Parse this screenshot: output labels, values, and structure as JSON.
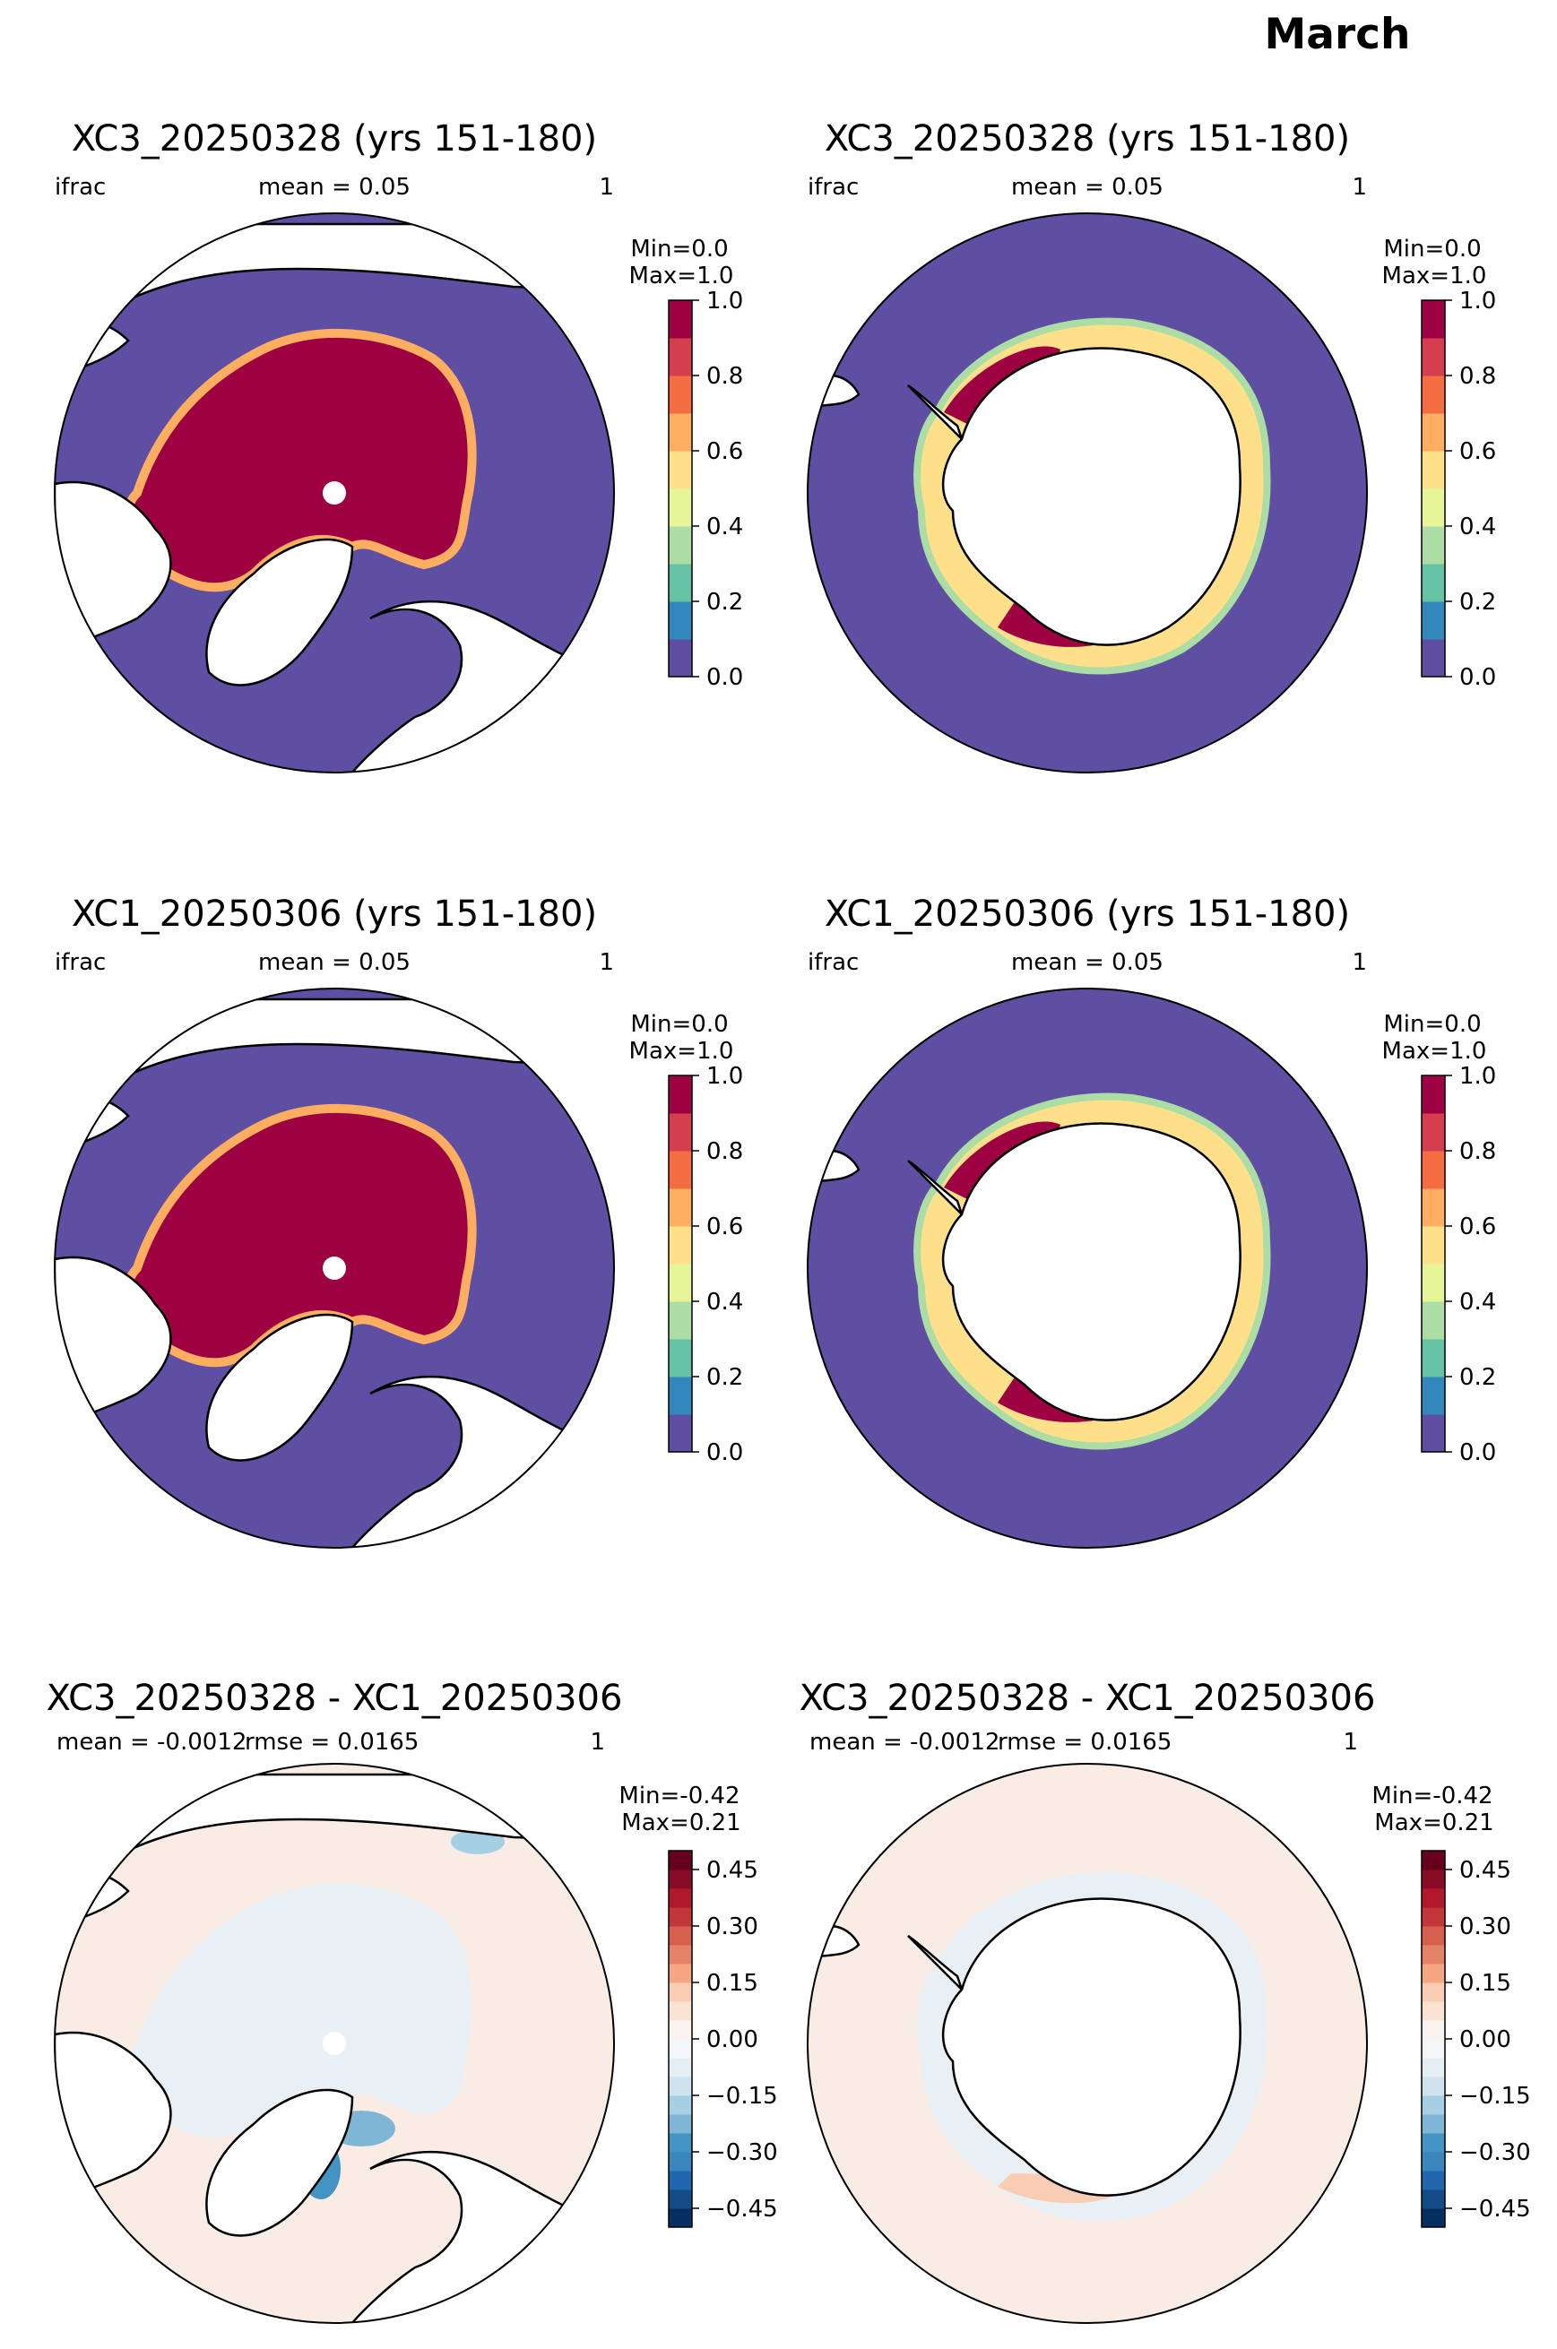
{
  "figure": {
    "suptitle": "March",
    "field": "ifrac"
  },
  "chart_data": [
    {
      "type": "heatmap",
      "map": "north-polar-stereographic",
      "title": "XC3_20250328 (yrs 151-180)",
      "label_left": "ifrac",
      "label_center": "mean = 0.05",
      "label_right": "1",
      "colormap": "Spectral_r",
      "colorbar": {
        "min_text": "Min=0.0",
        "max_text": "Max=1.0",
        "ticks": [
          "0.0",
          "0.2",
          "0.4",
          "0.6",
          "0.8",
          "1.0"
        ],
        "range": [
          0,
          1
        ],
        "levels": 10
      }
    },
    {
      "type": "heatmap",
      "map": "south-polar-stereographic",
      "title": "XC3_20250328 (yrs 151-180)",
      "label_left": "ifrac",
      "label_center": "mean = 0.05",
      "label_right": "1",
      "colormap": "Spectral_r",
      "colorbar": {
        "min_text": "Min=0.0",
        "max_text": "Max=1.0",
        "ticks": [
          "0.0",
          "0.2",
          "0.4",
          "0.6",
          "0.8",
          "1.0"
        ],
        "range": [
          0,
          1
        ],
        "levels": 10
      }
    },
    {
      "type": "heatmap",
      "map": "north-polar-stereographic",
      "title": "XC1_20250306 (yrs 151-180)",
      "label_left": "ifrac",
      "label_center": "mean = 0.05",
      "label_right": "1",
      "colormap": "Spectral_r",
      "colorbar": {
        "min_text": "Min=0.0",
        "max_text": "Max=1.0",
        "ticks": [
          "0.0",
          "0.2",
          "0.4",
          "0.6",
          "0.8",
          "1.0"
        ],
        "range": [
          0,
          1
        ],
        "levels": 10
      }
    },
    {
      "type": "heatmap",
      "map": "south-polar-stereographic",
      "title": "XC1_20250306 (yrs 151-180)",
      "label_left": "ifrac",
      "label_center": "mean = 0.05",
      "label_right": "1",
      "colormap": "Spectral_r",
      "colorbar": {
        "min_text": "Min=0.0",
        "max_text": "Max=1.0",
        "ticks": [
          "0.0",
          "0.2",
          "0.4",
          "0.6",
          "0.8",
          "1.0"
        ],
        "range": [
          0,
          1
        ],
        "levels": 10
      }
    },
    {
      "type": "heatmap",
      "map": "north-polar-stereographic",
      "title": "XC3_20250328 - XC1_20250306",
      "label_left": "mean = -0.0012",
      "label_center": "rmse = 0.0165",
      "label_right": "1",
      "colormap": "RdBu_r",
      "colorbar": {
        "min_text": "Min=-0.42",
        "max_text": "Max=0.21",
        "ticks": [
          "−0.45",
          "−0.30",
          "−0.15",
          "0.00",
          "0.15",
          "0.30",
          "0.45"
        ],
        "range": [
          -0.5,
          0.5
        ],
        "levels": 20
      }
    },
    {
      "type": "heatmap",
      "map": "south-polar-stereographic",
      "title": "XC3_20250328 - XC1_20250306",
      "label_left": "mean = -0.0012",
      "label_center": "rmse = 0.0165",
      "label_right": "1",
      "colormap": "RdBu_r",
      "colorbar": {
        "min_text": "Min=-0.42",
        "max_text": "Max=0.21",
        "ticks": [
          "−0.45",
          "−0.30",
          "−0.15",
          "0.00",
          "0.15",
          "0.30",
          "0.45"
        ],
        "range": [
          -0.5,
          0.5
        ],
        "levels": 20
      }
    }
  ],
  "colors": {
    "ocean_open": "#5e4fa2",
    "ice_full": "#9e0142",
    "land": "#ffffff",
    "diff_background": "#f9ece4",
    "diff_light_blue": "#e8f0f5",
    "spectral_levels": [
      "#5e4fa2",
      "#3288bd",
      "#66c2a5",
      "#abdda4",
      "#e6f598",
      "#fee08b",
      "#fdae61",
      "#f46d43",
      "#d53e4f",
      "#9e0142"
    ],
    "rdbu_levels": [
      "#053061",
      "#134c87",
      "#2166ac",
      "#3a87bd",
      "#4393c3",
      "#7fb6d6",
      "#a7cfe4",
      "#cfe3ee",
      "#e6eff4",
      "#f4f7f9",
      "#faf3ef",
      "#fbe3d4",
      "#f9cdb3",
      "#f4a582",
      "#e58368",
      "#d6604d",
      "#c13639",
      "#b2182b",
      "#8a0b25",
      "#67001f"
    ]
  }
}
